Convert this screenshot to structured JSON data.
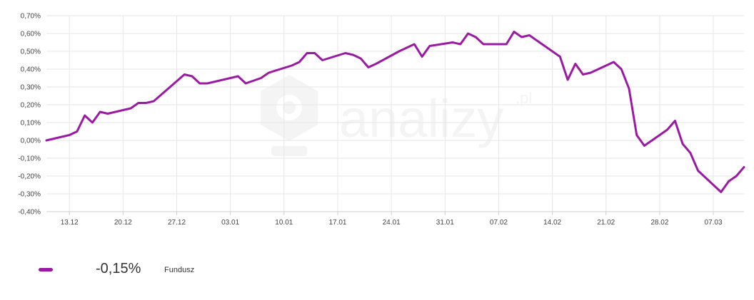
{
  "colors": {
    "series": "#9b1aa3",
    "grid": "#e6e6e6",
    "axis_text": "#444444"
  },
  "legend": {
    "value": "-0,15%",
    "name": "Fundusz"
  },
  "chart_data": {
    "type": "line",
    "title": "",
    "xlabel": "",
    "ylabel": "",
    "ylim": [
      -0.4,
      0.7
    ],
    "y_ticks": [
      "0,70%",
      "0,60%",
      "0,50%",
      "0,40%",
      "0,30%",
      "0,20%",
      "0,10%",
      "0,00%",
      "-0,10%",
      "-0,20%",
      "-0,30%",
      "-0,40%"
    ],
    "x_ticks": [
      "13.12",
      "20.12",
      "27.12",
      "03.01",
      "10.01",
      "17.01",
      "24.01",
      "31.01",
      "07.02",
      "14.02",
      "21.02",
      "28.02",
      "07.03"
    ],
    "grid": true,
    "series": [
      {
        "values": [
          [
            "10.12",
            0.0
          ],
          [
            "13.12",
            0.03
          ],
          [
            "14.12",
            0.05
          ],
          [
            "15.12",
            0.14
          ],
          [
            "16.12",
            0.1
          ],
          [
            "17.12",
            0.16
          ],
          [
            "18.12",
            0.15
          ],
          [
            "21.12",
            0.18
          ],
          [
            "22.12",
            0.21
          ],
          [
            "23.12",
            0.21
          ],
          [
            "24.12",
            0.22
          ],
          [
            "28.12",
            0.37
          ],
          [
            "29.12",
            0.36
          ],
          [
            "30.12",
            0.32
          ],
          [
            "31.12",
            0.32
          ],
          [
            "04.01",
            0.36
          ],
          [
            "05.01",
            0.32
          ],
          [
            "07.01",
            0.35
          ],
          [
            "08.01",
            0.38
          ],
          [
            "11.01",
            0.42
          ],
          [
            "12.01",
            0.44
          ],
          [
            "13.01",
            0.49
          ],
          [
            "14.01",
            0.49
          ],
          [
            "15.01",
            0.45
          ],
          [
            "18.01",
            0.49
          ],
          [
            "19.01",
            0.48
          ],
          [
            "20.01",
            0.46
          ],
          [
            "21.01",
            0.41
          ],
          [
            "22.01",
            0.43
          ],
          [
            "25.01",
            0.5
          ],
          [
            "26.01",
            0.52
          ],
          [
            "27.01",
            0.54
          ],
          [
            "28.01",
            0.47
          ],
          [
            "29.01",
            0.53
          ],
          [
            "01.02",
            0.55
          ],
          [
            "02.02",
            0.54
          ],
          [
            "03.02",
            0.6
          ],
          [
            "04.02",
            0.58
          ],
          [
            "05.02",
            0.54
          ],
          [
            "08.02",
            0.54
          ],
          [
            "09.02",
            0.61
          ],
          [
            "10.02",
            0.58
          ],
          [
            "11.02",
            0.59
          ],
          [
            "12.02",
            0.56
          ],
          [
            "15.02",
            0.47
          ],
          [
            "16.02",
            0.34
          ],
          [
            "17.02",
            0.43
          ],
          [
            "18.02",
            0.37
          ],
          [
            "19.02",
            0.38
          ],
          [
            "22.02",
            0.44
          ],
          [
            "23.02",
            0.4
          ],
          [
            "24.02",
            0.29
          ],
          [
            "25.02",
            0.03
          ],
          [
            "26.02",
            -0.03
          ],
          [
            "01.03",
            0.06
          ],
          [
            "02.03",
            0.11
          ],
          [
            "03.03",
            -0.02
          ],
          [
            "04.03",
            -0.07
          ],
          [
            "05.03",
            -0.17
          ],
          [
            "08.03",
            -0.29
          ],
          [
            "09.03",
            -0.23
          ],
          [
            "10.03",
            -0.2
          ],
          [
            "11.03",
            -0.15
          ]
        ]
      }
    ]
  }
}
